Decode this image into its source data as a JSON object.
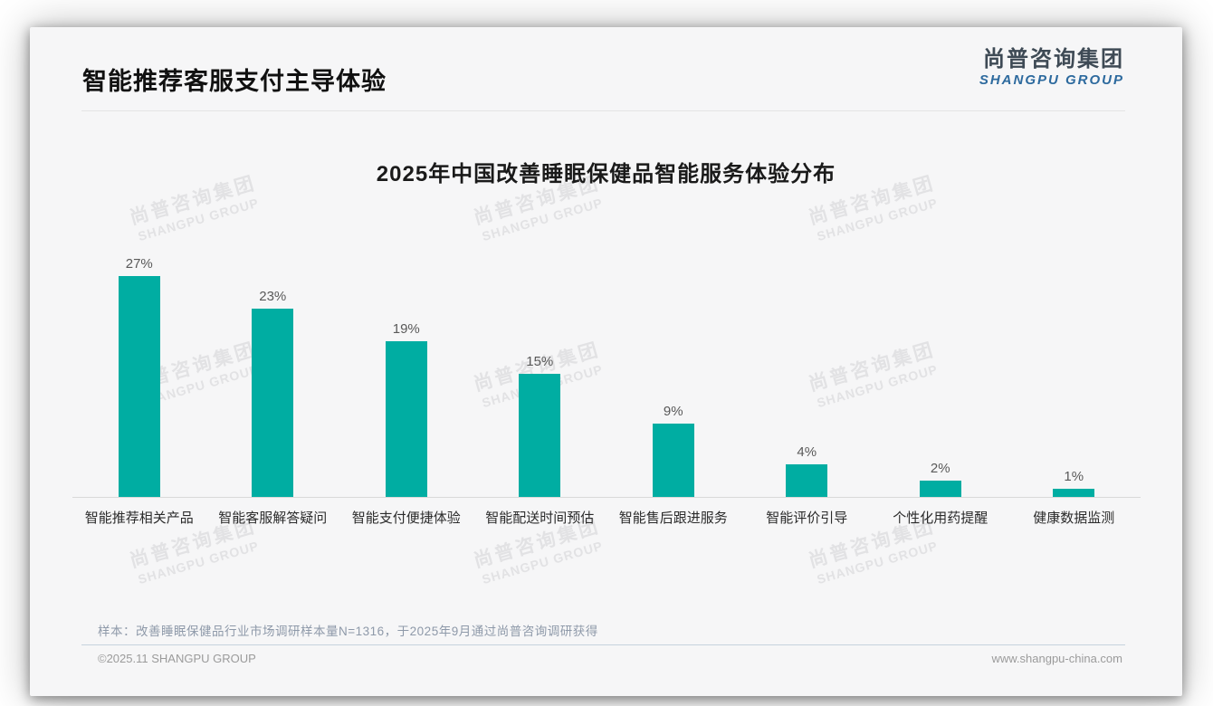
{
  "page": {
    "title": "智能推荐客服支付主导体验",
    "logo": {
      "cn": "尚普咨询集团",
      "en": "SHANGPU GROUP"
    },
    "watermark": {
      "cn": "尚普咨询集团",
      "en": "SHANGPU GROUP"
    },
    "footnote": "样本：改善睡眠保健品行业市场调研样本量N=1316，于2025年9月通过尚普咨询调研获得",
    "footer": {
      "left": "©2025.11 SHANGPU GROUP",
      "right": "www.shangpu-china.com"
    }
  },
  "chart_data": {
    "type": "bar",
    "title": "2025年中国改善睡眠保健品智能服务体验分布",
    "categories": [
      "智能推荐相关产品",
      "智能客服解答疑问",
      "智能支付便捷体验",
      "智能配送时间预估",
      "智能售后跟进服务",
      "智能评价引导",
      "个性化用药提醒",
      "健康数据监测"
    ],
    "values": [
      27,
      23,
      19,
      15,
      9,
      4,
      2,
      1
    ],
    "data_labels": [
      "27%",
      "23%",
      "19%",
      "15%",
      "9%",
      "4%",
      "2%",
      "1%"
    ],
    "unit": "%",
    "bar_color": "#00ada2",
    "ylim": [
      0,
      30
    ],
    "grid": false,
    "legend": false,
    "xlabel": "",
    "ylabel": ""
  }
}
